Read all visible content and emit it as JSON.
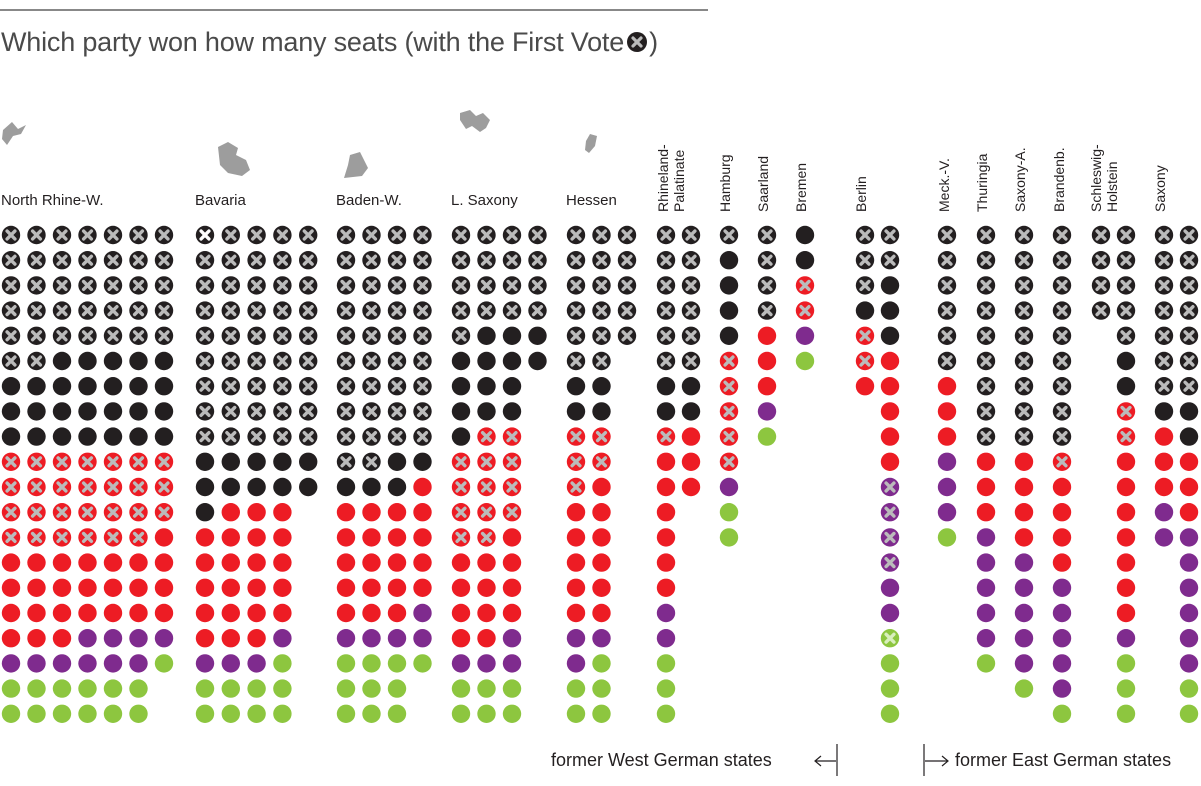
{
  "title": "Which party won how many seats (with the First Vote",
  "title_close": ")",
  "colors": {
    "cdu": "#231f20",
    "spd": "#ed1c24",
    "left": "#7f2b8e",
    "green": "#8dc63f",
    "first_vote_mark": "#bbbbbb",
    "first_vote_mark_on_green": "#d9efbd",
    "map_shape": "#9d9d9d",
    "rule": "#888888"
  },
  "legend": {
    "west": "former West German states",
    "east": "former East German states"
  },
  "chart_data": {
    "type": "waffle",
    "title": "Which party won how many seats (with the First Vote)",
    "legend_encoding": "cell code: first letter = party (C = black, S = red, L = purple, G = green); trailing x = seat won with the First Vote; W = white First Vote marker; '.' = empty",
    "states": [
      {
        "name": "North Rhine-W.",
        "horizontal": true,
        "rows": [
          "CxCxCxCxCxCxCx",
          "CxCxCxCxCxCxCx",
          "CxCxCxCxCxCxCx",
          "CxCxCxCxCxCxCx",
          "CxCxCxCxCxCxCx",
          "CxCxC C C C C ",
          "C C C C C C C ",
          "C C C C C C C ",
          "C C C C C C C ",
          "SxSxSxSxSxSxSx",
          "SxSxSxSxSxSxSx",
          "SxSxSxSxSxSxSx",
          "SxSxSxSxSxSxS ",
          "S S S S S S S ",
          "S S S S S S S ",
          "S S S S S S S ",
          "S S S L L L L ",
          "L L L L L L G ",
          "G G G G G G ..",
          "G G G G G G .."
        ]
      },
      {
        "name": "Bavaria",
        "horizontal": true,
        "rows": [
          "WxCxCxCxCx",
          "CxCxCxCxCx",
          "CxCxCxCxCx",
          "CxCxCxCxCx",
          "CxCxCxCxCx",
          "CxCxCxCxCx",
          "CxCxCxCxCx",
          "CxCxCxCxCx",
          "CxCxCxCxCx",
          "C C C C C ",
          "C C C C C ",
          "C S S S ..",
          "S S S S ..",
          "S S S S ..",
          "S S S S ..",
          "S S S S ..",
          "S S S L ..",
          "L L L G ..",
          "G G G G ..",
          "G G G G .."
        ]
      },
      {
        "name": "Baden-W.",
        "horizontal": true,
        "rows": [
          "CxCxCxCx",
          "CxCxCxCx",
          "CxCxCxCx",
          "CxCxCxCx",
          "CxCxCxCx",
          "CxCxCxCx",
          "CxCxCxCx",
          "CxCxCxCx",
          "CxCxCxCx",
          "CxCxC C ",
          "C C C S ",
          "S S S S ",
          "S S S S ",
          "S S S S ",
          "S S S S ",
          "S S S L ",
          "L L L L ",
          "G G G G ",
          "G G G ..",
          "G G G .."
        ]
      },
      {
        "name": "L. Saxony",
        "horizontal": true,
        "rows": [
          "CxCxCxCx",
          "CxCxCxCx",
          "CxCxCxCx",
          "CxCxCxCx",
          "CxC C C ",
          "C C C C ",
          "C C C ..",
          "C C C ..",
          "C SxSx..",
          "SxSxSx..",
          "SxSxSx..",
          "SxSxSx..",
          "SxSxS ..",
          "S S S ..",
          "S S S ..",
          "S S S ..",
          "S S L ..",
          "L L L ..",
          "G G G ..",
          "G G G .."
        ]
      },
      {
        "name": "Hessen",
        "horizontal": true,
        "rows": [
          "CxCxCx",
          "CxCxCx",
          "CxCxCx",
          "CxCxCx",
          "CxCxCx",
          "CxCx..",
          "C C ..",
          "C C ..",
          "SxSx..",
          "SxSx..",
          "SxS ..",
          "S S ..",
          "S S ..",
          "S S ..",
          "S S ..",
          "S S ..",
          "L L ..",
          "L G ..",
          "G G ..",
          "G G .."
        ]
      },
      {
        "name": "Rhineland-\nPalatinate",
        "horizontal": false,
        "rows": [
          "CxCx",
          "CxCx",
          "CxCx",
          "CxCx",
          "CxCx",
          "CxCx",
          "C C ",
          "C C ",
          "SxS ",
          "S S ",
          "S S ",
          "S ..",
          "S ..",
          "S ..",
          "S ..",
          "L ..",
          "L ..",
          "G ..",
          "G ..",
          "G .."
        ]
      },
      {
        "name": "Hamburg",
        "horizontal": false,
        "rows": [
          "Cx",
          "C ",
          "C ",
          "C ",
          "C ",
          "Sx",
          "Sx",
          "Sx",
          "Sx",
          "Sx",
          "L ",
          "G ",
          "G "
        ]
      },
      {
        "name": "Saarland",
        "horizontal": false,
        "rows": [
          "Cx",
          "Cx",
          "Cx",
          "Cx",
          "S ",
          "S ",
          "S ",
          "L ",
          "G "
        ]
      },
      {
        "name": "Bremen",
        "horizontal": false,
        "rows": [
          "C ",
          "C ",
          "Sx",
          "Sx",
          "L ",
          "G "
        ]
      },
      {
        "name": "Berlin",
        "horizontal": false,
        "rows": [
          "CxCx",
          "CxCx",
          "CxC ",
          "C C ",
          "SxC ",
          "SxS ",
          "S S ",
          "..S ",
          "..S ",
          "..S ",
          "..Lx",
          "..Lx",
          "..Lx",
          "..Lx",
          "..L ",
          "..L ",
          "..Gx",
          "..G ",
          "..G ",
          "..G "
        ]
      },
      {
        "name": "Meck.-V.",
        "horizontal": false,
        "rows": [
          "Cx",
          "Cx",
          "Cx",
          "Cx",
          "Cx",
          "Cx",
          "S ",
          "S ",
          "S ",
          "L ",
          "L ",
          "L ",
          "G "
        ]
      },
      {
        "name": "Thuringia",
        "horizontal": false,
        "rows": [
          "Cx",
          "Cx",
          "Cx",
          "Cx",
          "Cx",
          "Cx",
          "Cx",
          "Cx",
          "Cx",
          "S ",
          "S ",
          "S ",
          "L ",
          "L ",
          "L ",
          "L ",
          "L ",
          "G "
        ]
      },
      {
        "name": "Saxony-A.",
        "horizontal": false,
        "rows": [
          "Cx",
          "Cx",
          "Cx",
          "Cx",
          "Cx",
          "Cx",
          "Cx",
          "Cx",
          "Cx",
          "S ",
          "S ",
          "S ",
          "S ",
          "L ",
          "L ",
          "L ",
          "L ",
          "L ",
          "G "
        ]
      },
      {
        "name": "Brandenb.",
        "horizontal": false,
        "rows": [
          "Cx",
          "Cx",
          "Cx",
          "Cx",
          "Cx",
          "Cx",
          "Cx",
          "Cx",
          "Cx",
          "Sx",
          "S ",
          "S ",
          "S ",
          "S ",
          "L ",
          "L ",
          "L ",
          "L ",
          "L ",
          "G "
        ]
      },
      {
        "name": "Schleswig-\nHolstein",
        "horizontal": false,
        "rows": [
          "CxCx",
          "CxCx",
          "CxCx",
          "CxCx",
          "..Cx",
          "..C ",
          "..C ",
          "..Sx",
          "..Sx",
          "..S ",
          "..S ",
          "..S ",
          "..S ",
          "..S ",
          "..S ",
          "..S ",
          "..L ",
          "..G ",
          "..G ",
          "..G "
        ]
      },
      {
        "name": "Saxony",
        "horizontal": false,
        "rows": [
          "CxCx",
          "CxCx",
          "CxCx",
          "CxCx",
          "CxCx",
          "CxCx",
          "CxCx",
          "C C ",
          "S C ",
          "S S ",
          "S S ",
          "L S ",
          "L L ",
          "..L ",
          "..L ",
          "..L ",
          "..L ",
          "..L ",
          "..G ",
          "..G "
        ]
      }
    ]
  }
}
